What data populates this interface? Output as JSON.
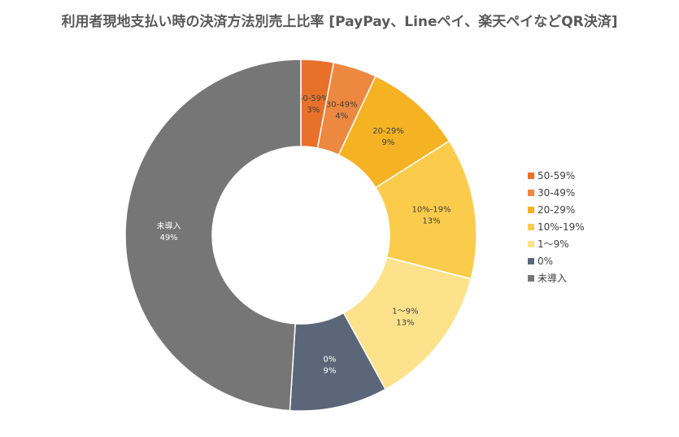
{
  "chart_data": {
    "type": "pie",
    "style": "donut",
    "title": "利用者現地支払い時の決済方法別売上比率 [PayPay、Lineペイ、楽天ペイなどQR決済]",
    "legend_position": "right",
    "slices": [
      {
        "label": "50-59%",
        "value": 3,
        "value_label": "3%",
        "color": "#e8712a"
      },
      {
        "label": "30-49%",
        "value": 4,
        "value_label": "4%",
        "color": "#ec8840"
      },
      {
        "label": "20-29%",
        "value": 9,
        "value_label": "9%",
        "color": "#f5b223"
      },
      {
        "label": "10%-19%",
        "value": 13,
        "value_label": "13%",
        "color": "#fbcb4b"
      },
      {
        "label": "1～9%",
        "value": 13,
        "value_label": "13%",
        "color": "#fde28c"
      },
      {
        "label": "0%",
        "value": 9,
        "value_label": "9%",
        "color": "#5b6678"
      },
      {
        "label": "未導入",
        "value": 49,
        "value_label": "49%",
        "color": "#767676"
      }
    ],
    "legend_labels": [
      "50-59%",
      "30-49%",
      "20-29%",
      "10%-19%",
      "1～9%",
      "0%",
      "未導入"
    ]
  }
}
